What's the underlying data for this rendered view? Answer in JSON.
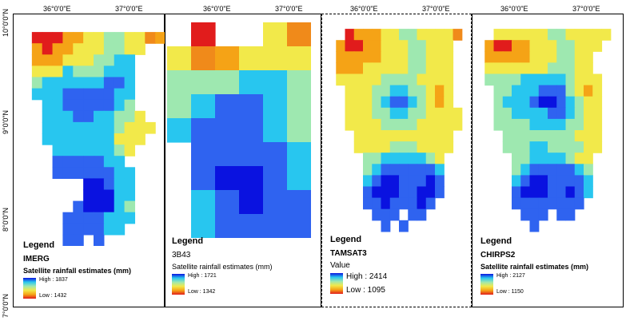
{
  "axes": {
    "lon_ticks": [
      "36°0'0\"E",
      "37°0'0\"E"
    ],
    "lat_ticks": [
      "10°0'0\"N",
      "9°0'0\"N",
      "8°0'0\"N",
      "7°0'0\"N"
    ]
  },
  "panels": [
    {
      "legend_title": "Legend",
      "product": "IMERG",
      "field": "Satellite rainfall estimates (mm)",
      "high": "High : 1837",
      "low": "Low : 1432",
      "grid_cols": 14,
      "cells": [
        "..............",
        ".RRRooyyggyyOo",
        ".oRooyyyggyy..",
        ".oooyyyggcc...",
        ".yyycgggccc...",
        ".gccccccbbc...",
        ".cccbbbbbcc...",
        "..ccbbbbbcg...",
        "..cccbbccggy..",
        "..cccccccgyyy.",
        "..cccccccyyy..",
        "...ccccccgy...",
        "...bbbbbcc....",
        "...bbbbbbcc...",
        "......BBbcc...",
        "......BBBcc...",
        ".....bBBBcg...",
        "....bbbbccc...",
        "....bbbbcc....",
        "....bb.b......"
      ]
    },
    {
      "legend_title": "Legend",
      "product": "3B43",
      "field": "Satellite rainfall estimates (mm)",
      "high": "High : 1721",
      "low": "Low : 1342",
      "grid_cols": 6,
      "cells": [
        ".R..yO",
        "yOoyyy",
        "gggccg",
        "gcbbcg",
        "cbbbcg",
        ".bbbbc",
        ".bBBbc",
        ".cbBbb",
        ".cbbbb"
      ]
    },
    {
      "legend_title": "Legend",
      "product": "TAMSAT3",
      "field": "Value",
      "high": "High : 2414",
      "low": "Low : 1095",
      "grid_cols": 16,
      "cells": [
        "................",
        "..RoooyyggyyyyO.",
        ".oRRooyyyggyyy..",
        ".oooooyyyggyyy..",
        ".oooyyyyyggyyy..",
        ".yyyyyggggyyyy..",
        "..yyyggccggyoy..",
        "..yyygcbbcgyoy..",
        "..yyyggccggyyyy.",
        "..yyyyggggyyyyy.",
        "...yyyyyyyyyyy..",
        "...yyyygggyyyy..",
        "....ggcccccgy...",
        "....gcbbbbbbc...",
        "....cbBBbbbBb...",
        "....bBBBbbBBb...",
        "....bbBbbbBb....",
        ".....bbb.bb.....",
        "......b.b.......",
        "................"
      ]
    },
    {
      "legend_title": "Legend",
      "product": "CHIRPS2",
      "field": "Satellite rainfall estimates (mm)",
      "high": "High : 2127",
      "low": "Low : 1150",
      "grid_cols": 16,
      "cells": [
        "................",
        "..yyyyyyggyyyyy.",
        ".oRRooyyyggyyy..",
        ".oooooyyyggyy...",
        ".yyyyyyygggyy...",
        ".ggggcccccgyyy..",
        "..ggcccbbbgyoy..",
        "..gcccbBBbcgyy..",
        "..ggccccbbcgyy..",
        "..ggggccccggyy..",
        "...ggggggggyyy..",
        "...gggccggggyy..",
        "....ggccccgyy...",
        "....gcbbbbbcg...",
        "....cbBBbbbbc...",
        "....bBBBbbBbc...",
        "....bbbbbbbb....",
        ".....bbb.bb.....",
        "......b.........",
        "................"
      ]
    }
  ],
  "colors": {
    "B": "#0a12e0",
    "b": "#2f63f0",
    "c": "#28c6ef",
    "g": "#9ee8b0",
    "y": "#f2e94a",
    "o": "#f5a316",
    "O": "#f08a1a",
    "R": "#e11c1c"
  }
}
